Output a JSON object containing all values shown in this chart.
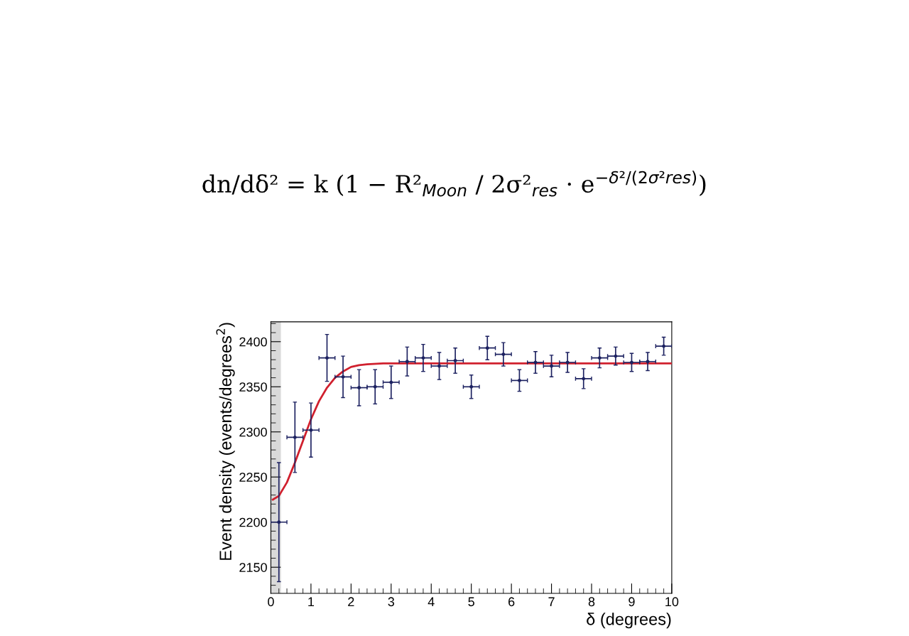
{
  "chart_data": {
    "type": "scatter",
    "xlabel": "δ (degrees)",
    "ylabel": "Event density (events/degrees$^{2}$)",
    "annotations": [
      "dn/dδ² = k (1 − R²$_{Moon}$ / 2σ²$_{res}$ · e$^{−δ²/(2σ²res)}$)"
    ],
    "xlim": [
      0,
      10
    ],
    "ylim": [
      2121,
      2422
    ],
    "xticks": [
      0,
      1,
      2,
      3,
      4,
      5,
      6,
      7,
      8,
      9,
      10
    ],
    "yticks": [
      2150,
      2200,
      2250,
      2300,
      2350,
      2400
    ],
    "grid": false,
    "bands": [
      {
        "axis": "x",
        "from": 0,
        "to": 0.25,
        "color": "#d9d9d9"
      }
    ],
    "series": [
      {
        "marker": "circle",
        "color": "#1c2160",
        "x": [
          0.2,
          0.6,
          1.0,
          1.4,
          1.8,
          2.2,
          2.6,
          3.0,
          3.4,
          3.8,
          4.2,
          4.6,
          5.0,
          5.4,
          5.8,
          6.2,
          6.6,
          7.0,
          7.4,
          7.8,
          8.2,
          8.6,
          9.0,
          9.4,
          9.8
        ],
        "values": [
          2200,
          2294,
          2302,
          2382,
          2361,
          2349,
          2350,
          2355,
          2378,
          2382,
          2373,
          2379,
          2350,
          2393,
          2386,
          2357,
          2377,
          2373,
          2377,
          2359,
          2382,
          2384,
          2377,
          2378,
          2395
        ],
        "errors": [
          66,
          39,
          30,
          26,
          23,
          20,
          19,
          18,
          16,
          15,
          15,
          14,
          13,
          13,
          13,
          12,
          12,
          12,
          11,
          11,
          11,
          10,
          10,
          10,
          10
        ],
        "xerrors": [
          0.2,
          0.2,
          0.2,
          0.2,
          0.2,
          0.2,
          0.2,
          0.2,
          0.2,
          0.2,
          0.2,
          0.2,
          0.2,
          0.2,
          0.2,
          0.2,
          0.2,
          0.2,
          0.2,
          0.2,
          0.2,
          0.2,
          0.2,
          0.2,
          0.2
        ]
      },
      {
        "type": "line",
        "marker": "none",
        "line_style": "solid",
        "color": "#d0202e",
        "x": [
          0.05,
          0.2,
          0.4,
          0.6,
          0.8,
          1.0,
          1.2,
          1.4,
          1.6,
          1.8,
          2.0,
          2.2,
          2.4,
          2.8,
          10
        ],
        "values": [
          2225,
          2229,
          2244,
          2266,
          2290,
          2314,
          2334,
          2349,
          2360,
          2367,
          2372,
          2374,
          2375,
          2376,
          2376
        ]
      }
    ]
  }
}
